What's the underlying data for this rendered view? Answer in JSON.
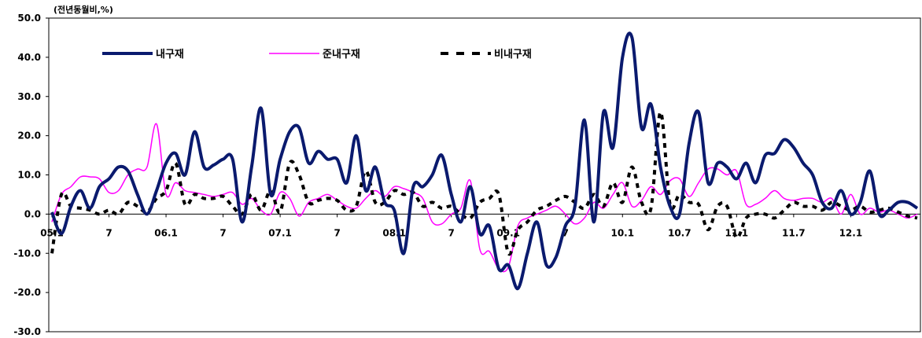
{
  "chart_data": {
    "type": "line",
    "unit_label": "(전년동월비,%)",
    "ylim": [
      -30,
      50
    ],
    "y_ticks": [
      "50.0",
      "40.0",
      "30.0",
      "20.0",
      "10.0",
      "0.0",
      "-10.0",
      "-20.0",
      "-30.0"
    ],
    "x_tick_labels": [
      "05.1",
      "7",
      "06.1",
      "7",
      "07.1",
      "7",
      "08.1",
      "7",
      "09.1",
      "7",
      "10.1",
      "10.7",
      "11.1",
      "11.7",
      "12.1"
    ],
    "x_tick_positions": [
      0,
      6,
      12,
      18,
      24,
      30,
      36,
      42,
      48,
      54,
      60,
      66,
      72,
      78,
      84
    ],
    "x_count": 92,
    "grid": false,
    "legend_position": "top-left",
    "series": [
      {
        "name": "내구재",
        "color": "#0a1a6e",
        "style": "thick-solid",
        "values": [
          0.5,
          -5,
          2,
          6,
          1.5,
          7,
          9,
          12,
          11,
          5,
          0,
          6,
          13,
          15.5,
          10,
          21,
          12,
          12.5,
          14,
          14,
          -2,
          12,
          27,
          5,
          14,
          21,
          22,
          13,
          16,
          14,
          14,
          8,
          20,
          6,
          12,
          3,
          1,
          -10,
          7,
          7,
          10,
          15,
          5,
          -2,
          7,
          -5,
          -3,
          -14,
          -13,
          -19,
          -10,
          -2,
          -13,
          -11,
          -3,
          2,
          24,
          -2,
          26,
          17,
          40,
          45,
          22,
          28,
          12,
          2,
          0,
          18,
          26,
          8,
          13,
          12,
          9,
          13,
          8,
          15,
          15.5,
          19,
          17,
          13,
          10,
          3,
          1.5,
          6,
          0,
          3,
          11,
          0,
          1,
          3,
          3,
          1.5
        ]
      },
      {
        "name": "준내구재",
        "color": "#ff00ff",
        "style": "thin-solid",
        "values": [
          -2,
          5,
          7,
          9.5,
          9.5,
          9,
          5.5,
          6,
          10,
          11.5,
          12,
          23,
          5,
          8,
          6,
          5.5,
          5,
          4.5,
          5,
          5.5,
          2.5,
          4,
          1,
          0,
          5.5,
          4,
          -0.5,
          3,
          4,
          5,
          3.5,
          2,
          1.5,
          4,
          6,
          4.5,
          7,
          6.5,
          5.5,
          4,
          -2,
          -2.5,
          0,
          1.5,
          8.5,
          -9,
          -9.5,
          -14,
          -13.5,
          -3,
          -1,
          0,
          1,
          2,
          0,
          -2.5,
          -1,
          3,
          1.5,
          5,
          8,
          2,
          3.5,
          7,
          5,
          8.5,
          9,
          4.5,
          8,
          11.5,
          11.5,
          10,
          11,
          2.5,
          2.5,
          4,
          6,
          4,
          3.5,
          4,
          4,
          3,
          4,
          0,
          5,
          0,
          1.5,
          0.5,
          1,
          0,
          -1,
          0
        ]
      },
      {
        "name": "비내구재",
        "color": "#000000",
        "style": "dashed",
        "values": [
          -10,
          5,
          2,
          1.5,
          1,
          0,
          1,
          0,
          3,
          2,
          0.5,
          4,
          6,
          13,
          2.5,
          5,
          4,
          4,
          4.5,
          2,
          0,
          5,
          1,
          6,
          0.5,
          13,
          10,
          3,
          3.5,
          4,
          3.5,
          1,
          2,
          11,
          3,
          3,
          6,
          5,
          5.5,
          2,
          3,
          1.5,
          2,
          0,
          -1,
          3,
          4,
          5,
          -10,
          -4,
          -2,
          1,
          2,
          3.5,
          4.5,
          3,
          1.5,
          5,
          2,
          8,
          3,
          12,
          3,
          1.5,
          26,
          2.5,
          5,
          3,
          2.5,
          -4,
          2,
          2,
          -6,
          -1,
          0,
          0,
          -1,
          1,
          3,
          2,
          2,
          1,
          3,
          2,
          1,
          2,
          0.5,
          1,
          1.5,
          0.5,
          -0.5,
          -1
        ]
      }
    ]
  }
}
